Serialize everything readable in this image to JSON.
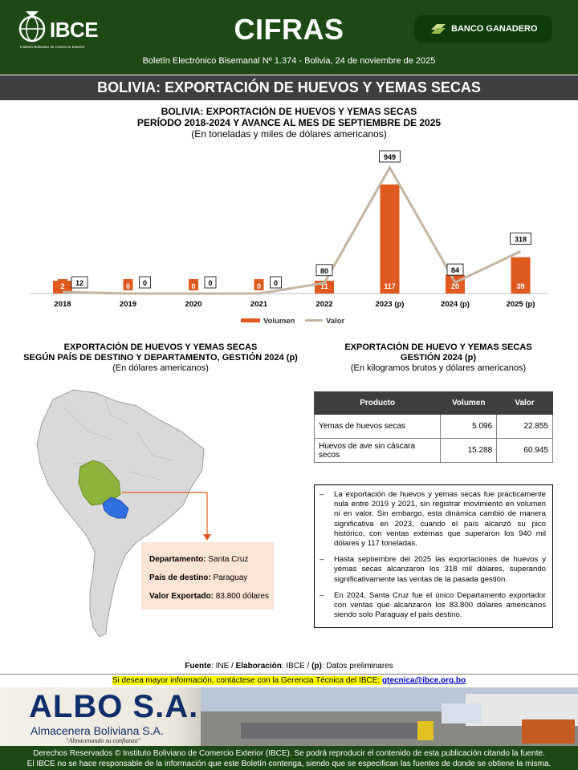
{
  "header": {
    "logo_text": "IBCE",
    "logo_sub": "Instituto Boliviano de Comercio Exterior",
    "title": "CIFRAS",
    "bank_label": "BANCO GANADERO",
    "bulletin": "Boletín Electrónico Bisemanal Nº 1.374 - Bolivia, 24 de noviembre de 2025"
  },
  "section_title": "BOLIVIA: EXPORTACIÓN DE HUEVOS Y YEMAS SECAS",
  "chart_data": {
    "type": "bar",
    "title_line1": "BOLIVIA: EXPORTACIÓN DE HUEVOS Y YEMAS SECAS",
    "title_line2": "PERÍODO 2018-2024 Y AVANCE AL MES DE SEPTIEMBRE DE 2025",
    "subtitle": "(En toneladas y miles de dólares americanos)",
    "categories": [
      "2018",
      "2019",
      "2020",
      "2021",
      "2022",
      "2023 (p)",
      "2024 (p)",
      "2025 (p)"
    ],
    "series": [
      {
        "name": "Volumen",
        "kind": "bar",
        "color": "#e0591f",
        "values": [
          2,
          0,
          0,
          0,
          11,
          117,
          20,
          39
        ]
      },
      {
        "name": "Valor",
        "kind": "line",
        "color": "#c4b5a0",
        "values": [
          12,
          0,
          0,
          0,
          80,
          949,
          84,
          318
        ]
      }
    ],
    "legend_position": "bottom"
  },
  "map_block": {
    "title_line1": "EXPORTACIÓN DE HUEVOS Y YEMAS SECAS",
    "title_line2": "SEGÚN PAÍS DE DESTINO Y DEPARTAMENTO, GESTIÓN 2024 (p)",
    "subtitle": "(En dólares americanos)",
    "dept_label": "Departamento:",
    "dept_value": "Santa Cruz",
    "country_label": "País de destino:",
    "country_value": "Paraguay",
    "value_label": "Valor Exportado:",
    "value_value": "83.800 dólares",
    "colors": {
      "bolivia": "#8db33a",
      "paraguay": "#2f6fe0",
      "continent": "#d9d9d9",
      "arrow": "#e0591f"
    }
  },
  "table_block": {
    "title_line1": "EXPORTACIÓN DE HUEVO Y YEMAS SECAS",
    "title_line2": "GESTIÓN 2024 (p)",
    "subtitle": "(En kilogramos brutos y dólares americanos)",
    "headers": [
      "Producto",
      "Volumen",
      "Valor"
    ],
    "rows": [
      {
        "product": "Yemas de huevos secas",
        "volume": "5.096",
        "value": "22.855"
      },
      {
        "product": "Huevos de ave sin cáscara secos",
        "volume": "15.288",
        "value": "60.945"
      }
    ]
  },
  "notes": [
    "La exportación de huevos y yemas secas fue prácticamente nula entre 2019 y 2021, sin registrar movimiento en volumen ni en valor. Sin embargo, esta dinámica cambió de manera significativa en 2023, cuando el país alcanzó su pico histórico, con ventas externas que superaron los 940 mil dólares y 117 toneladas.",
    "Hasta septiembre del 2025 las exportaciones de huevos y yemas secas alcanzaron los 318 mil dólares, superando significativamente las ventas de la pasada gestión.",
    "En 2024, Santa Cruz fue el único Departamento exportador con ventas que alcanzaron los 83.800 dólares americanos siendo solo Paraguay el país destino."
  ],
  "note_dash": "–",
  "fuente": {
    "label1": "Fuente",
    "text1": ":  INE / ",
    "label2": "Elaboración",
    "text2": ": IBCE / ",
    "label3": "(p)",
    "text3": ": Datos preliminares"
  },
  "contact": {
    "text": "Si desea mayor información, contáctese con la Gerencia Técnica del IBCE: ",
    "email": "gtecnica@ibce.org.bo"
  },
  "ad": {
    "brand": "ALBO S.A.",
    "subtitle": "Almacenera Boliviana S.A.",
    "slogan": "\"Almacenando su confianza\""
  },
  "footer": {
    "line1": "Derechos Reservados © Instituto Boliviano de Comercio Exterior (IBCE). Se podrá reproducir el contenido de esta publicación citando la fuente.",
    "line2": "El IBCE no se hace responsable de la información que este Boletín contenga, siendo que se especifican las fuentes de donde se obtiene la misma."
  }
}
